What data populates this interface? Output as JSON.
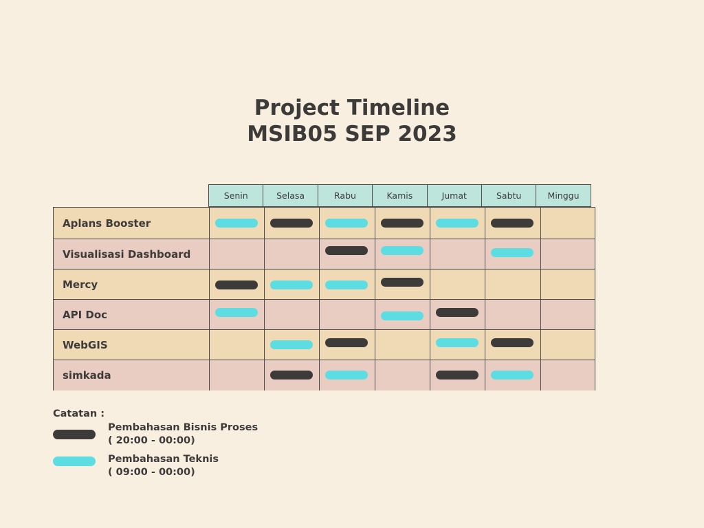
{
  "title": {
    "line1": "Project Timeline",
    "line2": "MSIB05 SEP 2023"
  },
  "days": [
    "Senin",
    "Selasa",
    "Rabu",
    "Kamis",
    "Jumat",
    "Sabtu",
    "Minggu"
  ],
  "projects": [
    {
      "name": "Aplans Booster",
      "sessions": [
        "teknis",
        "bisnis",
        "teknis",
        "bisnis",
        "teknis",
        "bisnis",
        ""
      ]
    },
    {
      "name": "Visualisasi Dashboard",
      "sessions": [
        "",
        "",
        "bisnis",
        "teknis",
        "",
        "teknis",
        ""
      ]
    },
    {
      "name": "Mercy",
      "sessions": [
        "bisnis",
        "teknis",
        "teknis",
        "bisnis",
        "",
        "",
        ""
      ]
    },
    {
      "name": "API Doc",
      "sessions": [
        "teknis",
        "",
        "",
        "teknis",
        "bisnis",
        "",
        ""
      ]
    },
    {
      "name": "WebGIS",
      "sessions": [
        "",
        "teknis",
        "bisnis",
        "",
        "teknis",
        "bisnis",
        ""
      ]
    },
    {
      "name": "simkada",
      "sessions": [
        "",
        "bisnis",
        "teknis",
        "",
        "bisnis",
        "teknis",
        ""
      ]
    }
  ],
  "notes": {
    "title": "Catatan :",
    "items": [
      {
        "type": "bisnis",
        "line1": "Pembahasan Bisnis Proses",
        "line2": "( 20:00 - 00:00)"
      },
      {
        "type": "teknis",
        "line1": "Pembahasan Teknis",
        "line2": "( 09:00 - 00:00)"
      }
    ]
  },
  "colors": {
    "bisnis": "#3d3b3a",
    "teknis": "#5ddde2",
    "header": "#bde5dc",
    "row_odd": "#f0d9b5",
    "row_even": "#e9cdc2",
    "background": "#f8efe1"
  }
}
